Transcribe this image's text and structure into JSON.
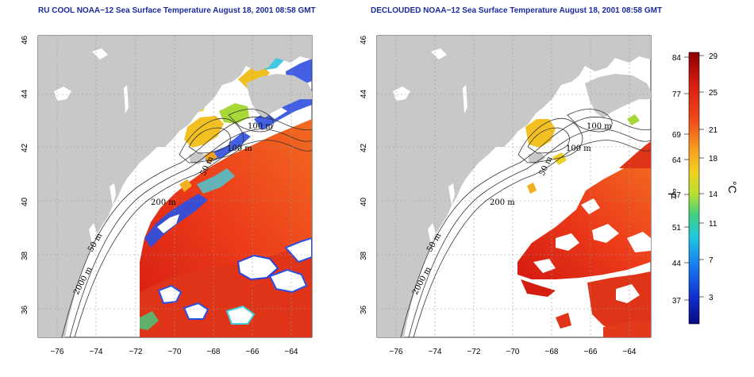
{
  "panels": [
    {
      "title": "RU COOL NOAA−12 Sea Surface Temperature August 18, 2001 08:58 GMT",
      "lat_ticks": [
        "36",
        "38",
        "40",
        "42",
        "44",
        "46"
      ],
      "lon_ticks": [
        "−76",
        "−74",
        "−72",
        "−70",
        "−68",
        "−66",
        "−64"
      ],
      "isobaths": [
        "100 m",
        "100 m",
        "50 m",
        "200 m",
        "50 m",
        "2000 m"
      ]
    },
    {
      "title": "DECLOUDED NOAA−12 Sea Surface Temperature August 18, 2001 08:58 GMT",
      "lat_ticks": [
        "36",
        "38",
        "40",
        "42",
        "44",
        "46"
      ],
      "lon_ticks": [
        "−76",
        "−74",
        "−72",
        "−70",
        "−68",
        "−66",
        "−64"
      ],
      "isobaths": [
        "100 m",
        "100 m",
        "50 m",
        "200 m",
        "50 m",
        "2000 m"
      ]
    }
  ],
  "colorbar": {
    "fahrenheit_ticks": [
      "84",
      "77",
      "69",
      "64",
      "57",
      "51",
      "44",
      "37"
    ],
    "celsius_ticks": [
      "29",
      "25",
      "21",
      "18",
      "14",
      "11",
      "7",
      "3"
    ],
    "fahrenheit_unit": "°F",
    "celsius_unit": "°C"
  },
  "colors": {
    "land": "#c8c8c8",
    "title": "#1a2a9c",
    "sst_warm": "#e8321e",
    "sst_cool": "#2244dd"
  }
}
